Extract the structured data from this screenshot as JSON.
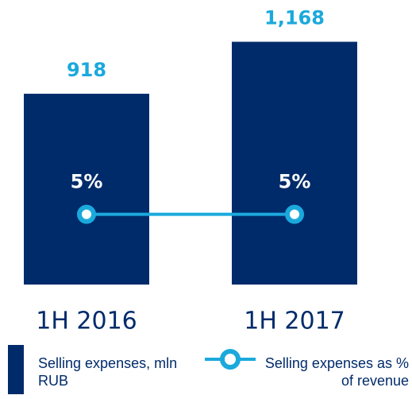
{
  "chart_data": {
    "type": "bar",
    "categories": [
      "1H 2016",
      "1H 2017"
    ],
    "series": [
      {
        "name": "Selling expenses, mln RUB",
        "type": "bar",
        "color": "#002b6b",
        "values": [
          918,
          1168
        ],
        "value_labels": [
          "918",
          "1,168"
        ]
      },
      {
        "name": "Selling expenses as % of revenue",
        "type": "line",
        "axis": "y2",
        "color": "#1ba9dc",
        "values": [
          5,
          5
        ],
        "value_labels": [
          "5%",
          "5%"
        ]
      }
    ],
    "ylim": [
      0,
      1216
    ],
    "y2lim": [
      0,
      18
    ]
  }
}
